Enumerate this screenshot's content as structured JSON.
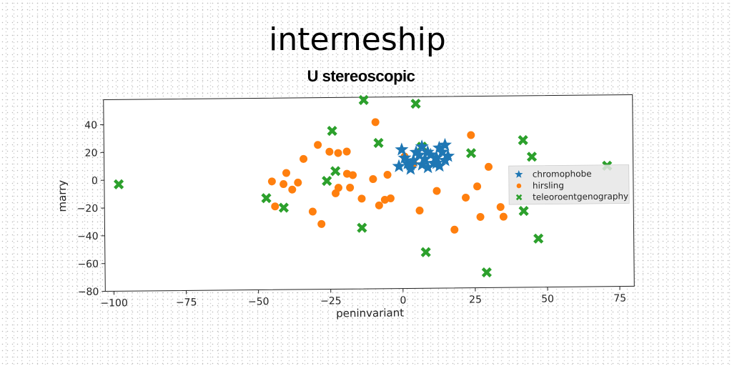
{
  "title": "interneship",
  "subtitle": "U stereoscopic",
  "chart_data": {
    "type": "scatter",
    "xlabel": "peninvariant",
    "ylabel": "marry",
    "xlim": [
      -103,
      80
    ],
    "ylim": [
      -80,
      58
    ],
    "xticks": [
      -100,
      -75,
      -50,
      -25,
      0,
      25,
      50,
      75
    ],
    "yticks": [
      -80,
      -60,
      -40,
      -20,
      0,
      20,
      40
    ],
    "xtick_labels": [
      "−100",
      "−75",
      "−50",
      "−25",
      "0",
      "25",
      "50",
      "75"
    ],
    "ytick_labels": [
      "−80",
      "−60",
      "−40",
      "−20",
      "0",
      "20",
      "40"
    ],
    "grid": false,
    "legend_position": "right",
    "series": [
      {
        "name": "chromophobe",
        "marker": "star",
        "color": "#1f77b4",
        "points": [
          [
            -1,
            8
          ],
          [
            1,
            14
          ],
          [
            0,
            20
          ],
          [
            2,
            10
          ],
          [
            4,
            12
          ],
          [
            3,
            6
          ],
          [
            6,
            16
          ],
          [
            7,
            9
          ],
          [
            5,
            18
          ],
          [
            8,
            13
          ],
          [
            9,
            7
          ],
          [
            10,
            16
          ],
          [
            11,
            10
          ],
          [
            12,
            14
          ],
          [
            13,
            8
          ],
          [
            14,
            18
          ],
          [
            15,
            12
          ],
          [
            13,
            21
          ],
          [
            12,
            10
          ],
          [
            15,
            23
          ],
          [
            16,
            15
          ],
          [
            7,
            22
          ],
          [
            9,
            18
          ],
          [
            3,
            9
          ]
        ]
      },
      {
        "name": "hirsling",
        "marker": "circle",
        "color": "#ff7f0e",
        "points": [
          [
            -9,
            40
          ],
          [
            -29,
            24
          ],
          [
            -25,
            19
          ],
          [
            -22,
            18
          ],
          [
            -19,
            19
          ],
          [
            -34,
            14
          ],
          [
            -40,
            4
          ],
          [
            -41,
            -4
          ],
          [
            -38,
            -8
          ],
          [
            -36,
            -3
          ],
          [
            -45,
            -2
          ],
          [
            -44,
            -20
          ],
          [
            -31,
            -24
          ],
          [
            -28,
            -33
          ],
          [
            -23,
            -11
          ],
          [
            -22,
            -7
          ],
          [
            -19,
            3
          ],
          [
            -17,
            2
          ],
          [
            -18,
            -7
          ],
          [
            -14,
            -15
          ],
          [
            -10,
            -1
          ],
          [
            -8,
            -20
          ],
          [
            -6,
            -16
          ],
          [
            -4,
            -15
          ],
          [
            -5,
            2
          ],
          [
            1,
            15
          ],
          [
            4,
            10
          ],
          [
            6,
            -24
          ],
          [
            12,
            -10
          ],
          [
            18,
            -38
          ],
          [
            22,
            -15
          ],
          [
            24,
            30
          ],
          [
            26,
            -7
          ],
          [
            27,
            -29
          ],
          [
            30,
            7
          ],
          [
            34,
            -22
          ],
          [
            35,
            -29
          ]
        ]
      },
      {
        "name": "teleoroentgenography",
        "marker": "x",
        "color": "#2ca02c",
        "points": [
          [
            -13,
            56
          ],
          [
            5,
            53
          ],
          [
            -24,
            34
          ],
          [
            -8,
            25
          ],
          [
            7,
            22
          ],
          [
            24,
            17
          ],
          [
            42,
            26
          ],
          [
            45,
            14
          ],
          [
            71,
            7
          ],
          [
            -23,
            5
          ],
          [
            -26,
            -2
          ],
          [
            -47,
            -14
          ],
          [
            -41,
            -21
          ],
          [
            -14,
            -36
          ],
          [
            8,
            -54
          ],
          [
            29,
            -69
          ],
          [
            42,
            -25
          ],
          [
            47,
            -45
          ],
          [
            -98,
            -3
          ]
        ]
      }
    ]
  }
}
